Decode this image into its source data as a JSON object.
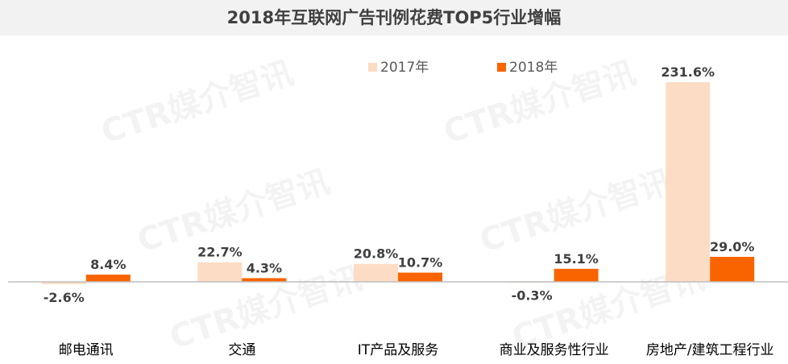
{
  "title": "2018年互联网广告刊例花费TOP5行业增幅",
  "watermark": "CTR媒介智讯",
  "chart_data": {
    "type": "bar",
    "title": "2018年互联网广告刊例花费TOP5行业增幅",
    "categories": [
      "邮电通讯",
      "交通",
      "IT产品及服务",
      "商业及服务性行业",
      "房地产/建筑工程行业"
    ],
    "series": [
      {
        "name": "2017年",
        "color": "#fcdcc4",
        "values": [
          -2.6,
          22.7,
          20.8,
          -0.3,
          231.6
        ],
        "labels": [
          "-2.6%",
          "22.7%",
          "20.8%",
          "-0.3%",
          "231.6%"
        ]
      },
      {
        "name": "2018年",
        "color": "#fa6400",
        "values": [
          8.4,
          4.3,
          10.7,
          15.1,
          29.0
        ],
        "labels": [
          "8.4%",
          "4.3%",
          "10.7%",
          "15.1%",
          "29.0%"
        ]
      }
    ],
    "ylim": [
      -20,
      240
    ],
    "legend": "top-center",
    "grid": false,
    "axis_line_color": "#bfbfbf",
    "label_color": "#404040"
  }
}
